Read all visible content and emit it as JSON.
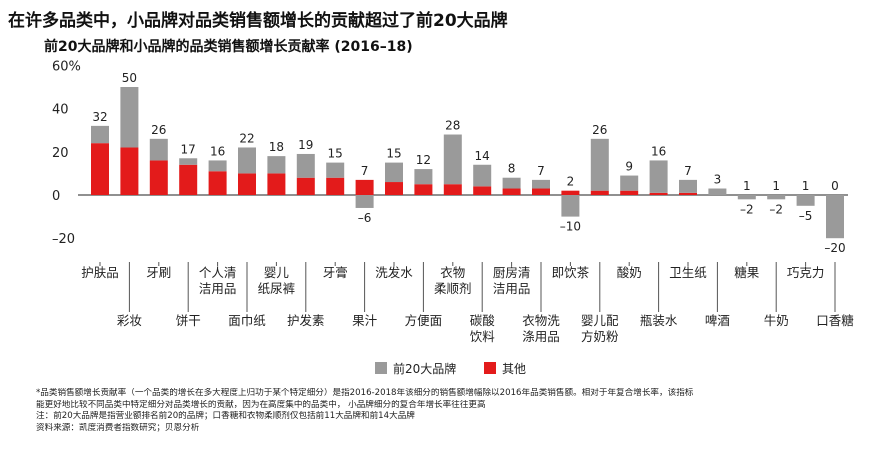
{
  "headline": "在许多品类中，小品牌对品类销售额增长的贡献超过了前20大品牌",
  "chart_data": {
    "type": "bar",
    "stacked": true,
    "title": "前20大品牌和小品牌的品类销售额增长贡献率 (2016–18)",
    "y_ticks": [
      "60%",
      "40",
      "20",
      "0",
      "–20"
    ],
    "ylim": [
      -20,
      60
    ],
    "categories": [
      "护肤品",
      "彩妆",
      "牙刷",
      "饼干",
      "个人清洁用品",
      "面巾纸",
      "婴儿纸尿裤",
      "护发素",
      "牙膏",
      "果汁",
      "洗发水",
      "方便面",
      "衣物柔顺剂",
      "碳酸饮料",
      "厨房清洁用品",
      "衣物洗涤用品",
      "即饮茶",
      "婴儿配方奶粉",
      "酸奶",
      "瓶装水",
      "卫生纸",
      "啤酒",
      "糖果",
      "牛奶",
      "巧克力",
      "口香糖"
    ],
    "category_labels": [
      [
        "护肤品"
      ],
      [
        "彩妆"
      ],
      [
        "牙刷"
      ],
      [
        "饼干"
      ],
      [
        "个人清",
        "洁用品"
      ],
      [
        "面巾纸"
      ],
      [
        "婴儿",
        "纸尿裤"
      ],
      [
        "护发素"
      ],
      [
        "牙膏"
      ],
      [
        "果汁"
      ],
      [
        "洗发水"
      ],
      [
        "方便面"
      ],
      [
        "衣物",
        "柔顺剂"
      ],
      [
        "碳酸",
        "饮料"
      ],
      [
        "厨房清",
        "洁用品"
      ],
      [
        "衣物洗",
        "涤用品"
      ],
      [
        "即饮茶"
      ],
      [
        "婴儿配",
        "方奶粉"
      ],
      [
        "酸奶"
      ],
      [
        "瓶装水"
      ],
      [
        "卫生纸"
      ],
      [
        "啤酒"
      ],
      [
        "糖果"
      ],
      [
        "牛奶"
      ],
      [
        "巧克力"
      ],
      [
        "口香糖"
      ]
    ],
    "series": [
      {
        "name": "前20大品牌",
        "color": "#9a9a9a",
        "values": [
          8,
          28,
          10,
          3,
          5,
          12,
          8,
          11,
          7,
          -6,
          9,
          7,
          23,
          10,
          5,
          4,
          -10,
          24,
          7,
          15,
          6,
          3,
          -2,
          -2,
          -5,
          -20
        ]
      },
      {
        "name": "其他",
        "color": "#e31b1b",
        "values": [
          24,
          22,
          16,
          14,
          11,
          10,
          10,
          8,
          8,
          7,
          6,
          5,
          5,
          4,
          3,
          3,
          2,
          2,
          2,
          1,
          1,
          0,
          0,
          0,
          0,
          0
        ]
      }
    ],
    "totals": [
      "32",
      "50",
      "26",
      "17",
      "16",
      "22",
      "18",
      "19",
      "15",
      "7",
      "15",
      "12",
      "28",
      "14",
      "8",
      "7",
      "2",
      "26",
      "9",
      "16",
      "7",
      "3",
      "1",
      "1",
      "1",
      "0"
    ],
    "negative_labels": [
      "",
      "",
      "",
      "",
      "",
      "",
      "",
      "",
      "",
      "–6",
      "",
      "",
      "",
      "",
      "",
      "",
      "–10",
      "",
      "",
      "",
      "",
      "",
      "–2",
      "–2",
      "–5",
      "–20"
    ],
    "legend_position": "bottom-center",
    "grid": false
  },
  "footnotes": [
    "*品类销售额增长贡献率（一个品类的增长在多大程度上归功于某个特定细分）是指2016-2018年该细分的销售额增幅除以2016年品类销售额。相对于年复合增长率，该指标",
    "能更好地比较不同品类中特定细分对品类增长的贡献，因为在高度集中的品类中，  小品牌细分的复合年增长率往往更高",
    "注：前20大品牌是指营业额排名前20的品牌；口香糖和衣物柔顺剂仅包括前11大品牌和前14大品牌",
    "资料来源：凯度消费者指数研究；贝恩分析"
  ]
}
